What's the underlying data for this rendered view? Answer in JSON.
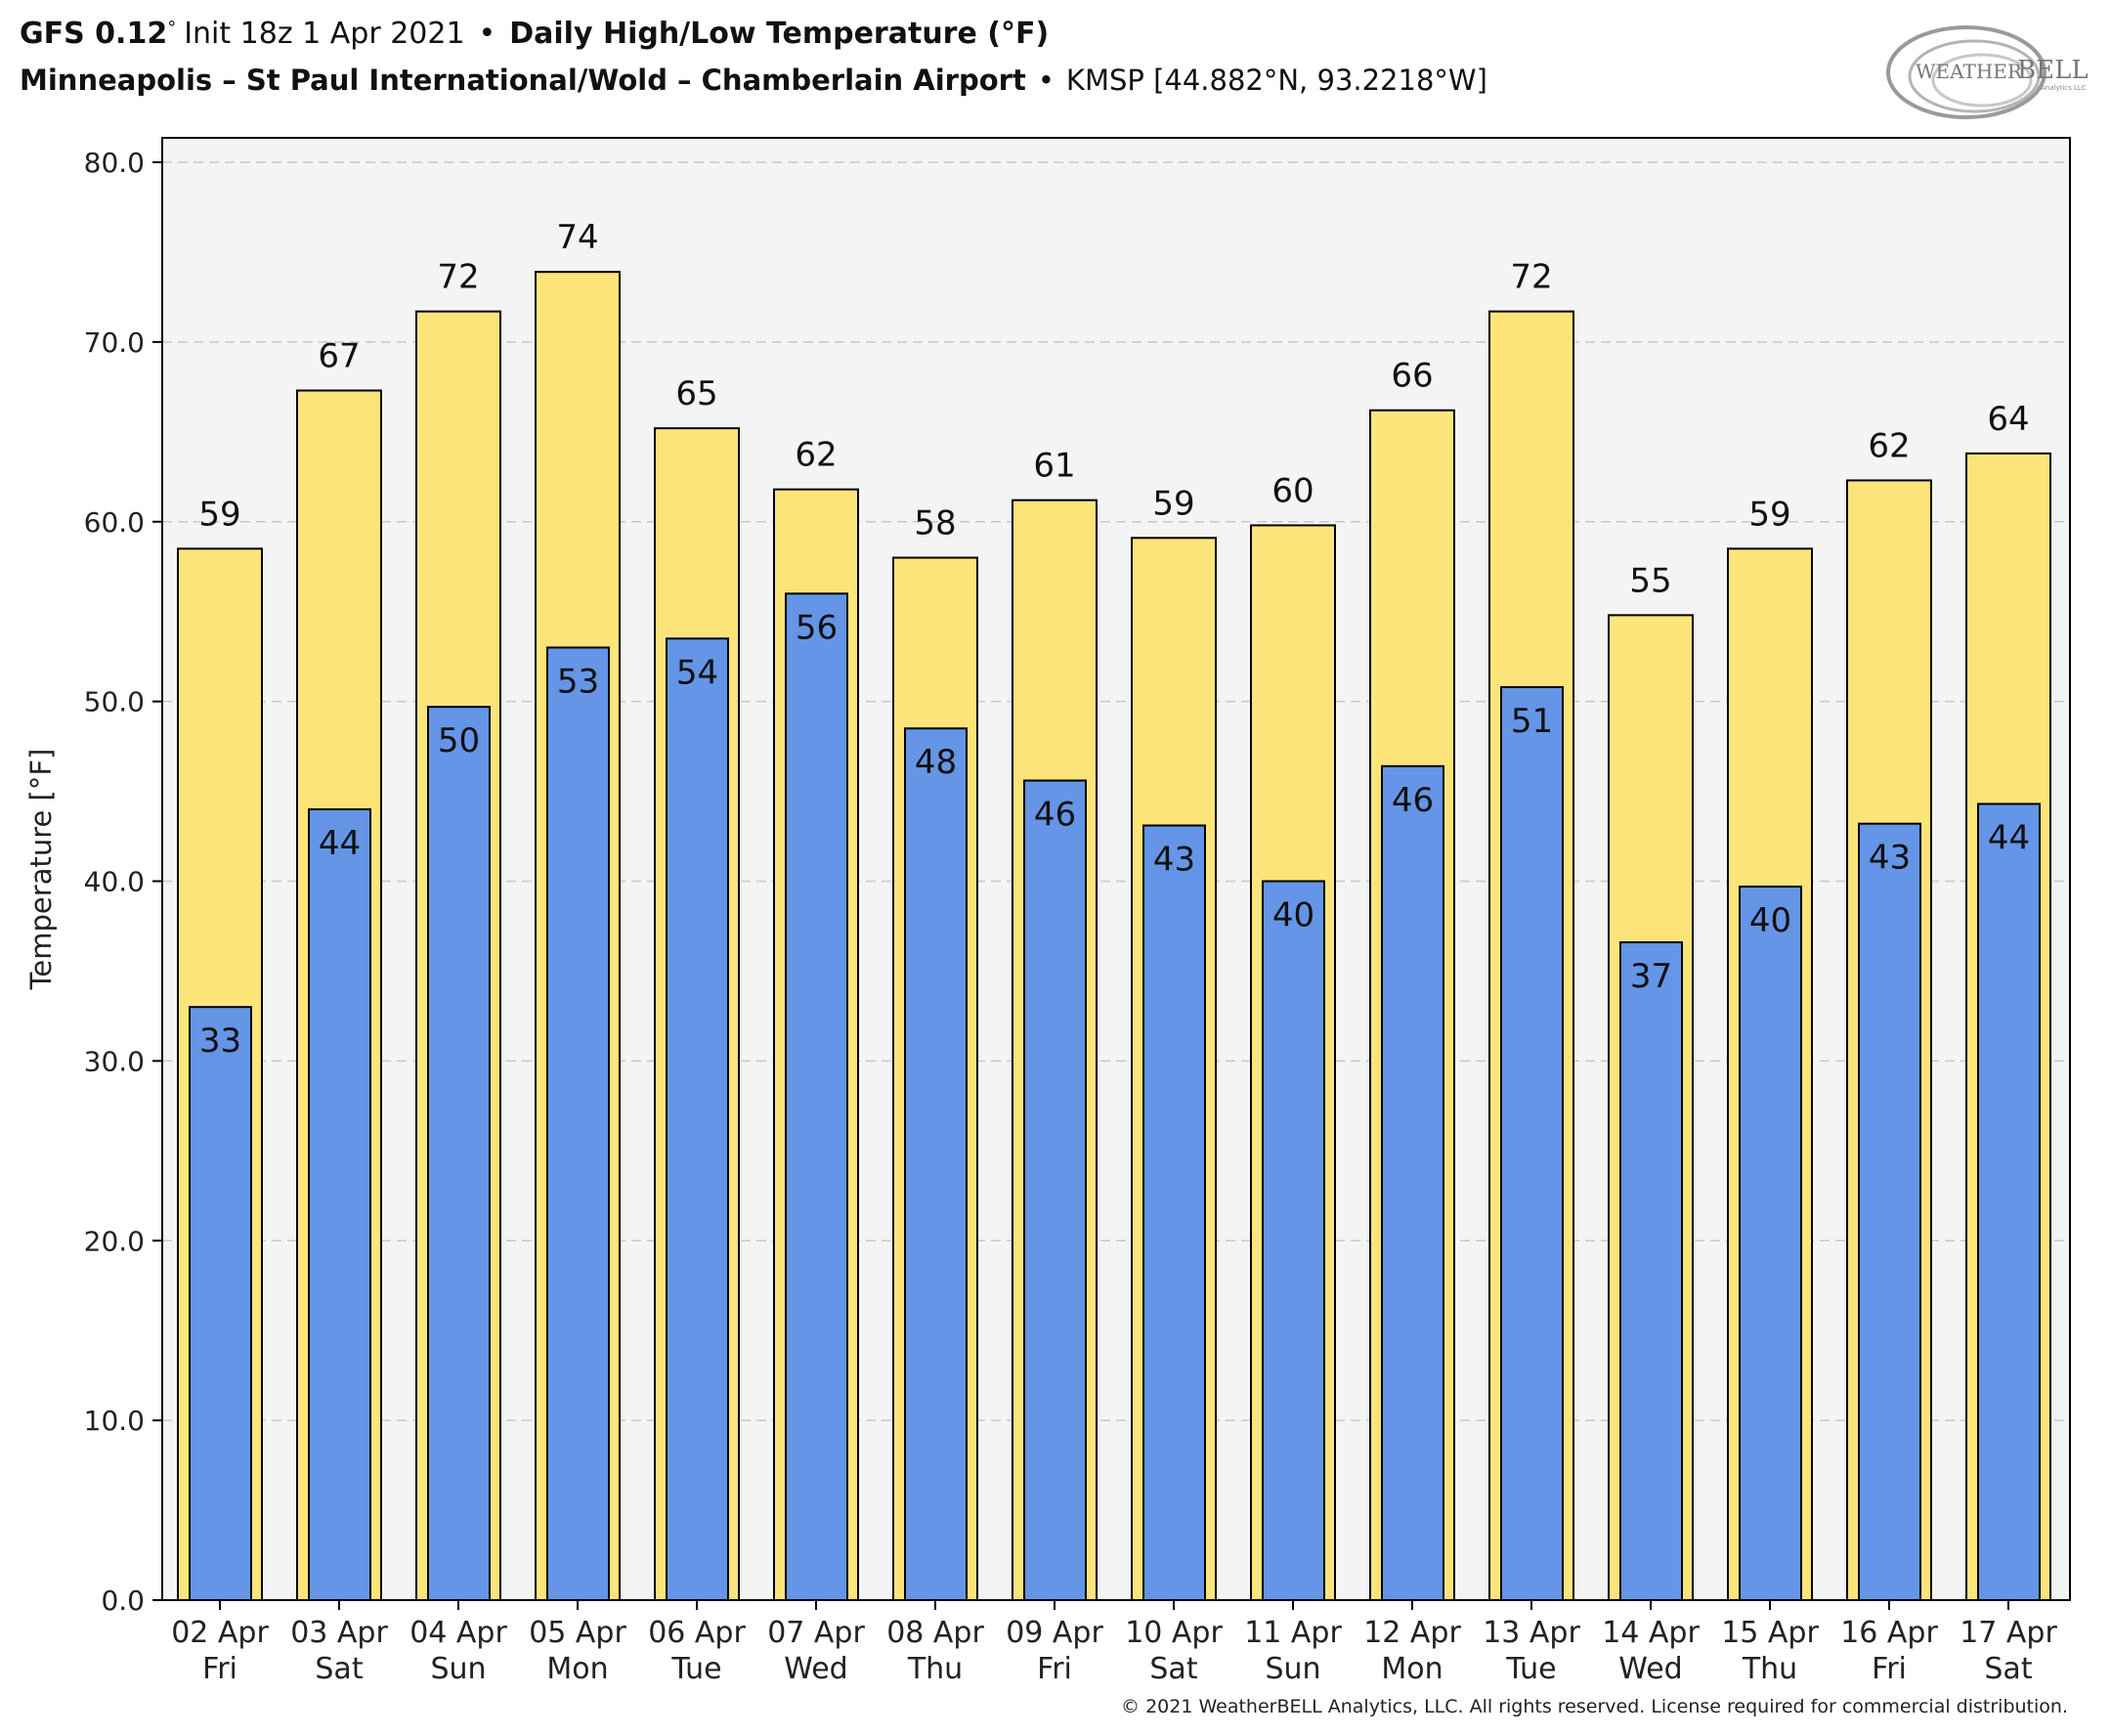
{
  "header": {
    "model": "GFS 0.12",
    "degree_mark": "°",
    "init": "Init 18z 1 Apr 2021",
    "bullet": "•",
    "product": "Daily High/Low Temperature (°F)",
    "station_name": "Minneapolis – St Paul International/Wold – Chamberlain Airport",
    "station_id": "KMSP [44.882°N, 93.2218°W]"
  },
  "logo": {
    "text_left": "WEATHER",
    "text_right": "BELL",
    "subtext": "Analytics LLC"
  },
  "footer": {
    "copyright": "© 2021 WeatherBELL Analytics, LLC. All rights reserved. License required for commercial distribution."
  },
  "colors": {
    "high": "#fde47a",
    "low": "#6495e6",
    "plot_bg": "#f4f4f4",
    "grid": "#c8c8c8",
    "outline": "#000000"
  },
  "chart_data": {
    "type": "bar",
    "ylabel": "Temperature [°F]",
    "ylim": [
      0,
      80
    ],
    "yticks": [
      "0.0",
      "10.0",
      "20.0",
      "30.0",
      "40.0",
      "50.0",
      "60.0",
      "70.0",
      "80.0"
    ],
    "grid": true,
    "categories": [
      {
        "date": "02 Apr",
        "day": "Fri"
      },
      {
        "date": "03 Apr",
        "day": "Sat"
      },
      {
        "date": "04 Apr",
        "day": "Sun"
      },
      {
        "date": "05 Apr",
        "day": "Mon"
      },
      {
        "date": "06 Apr",
        "day": "Tue"
      },
      {
        "date": "07 Apr",
        "day": "Wed"
      },
      {
        "date": "08 Apr",
        "day": "Thu"
      },
      {
        "date": "09 Apr",
        "day": "Fri"
      },
      {
        "date": "10 Apr",
        "day": "Sat"
      },
      {
        "date": "11 Apr",
        "day": "Sun"
      },
      {
        "date": "12 Apr",
        "day": "Mon"
      },
      {
        "date": "13 Apr",
        "day": "Tue"
      },
      {
        "date": "14 Apr",
        "day": "Wed"
      },
      {
        "date": "15 Apr",
        "day": "Thu"
      },
      {
        "date": "16 Apr",
        "day": "Fri"
      },
      {
        "date": "17 Apr",
        "day": "Sat"
      }
    ],
    "series": [
      {
        "key": "high",
        "values": [
          58.5,
          67.3,
          71.7,
          73.9,
          65.2,
          61.8,
          58.0,
          61.2,
          59.1,
          59.8,
          66.2,
          71.7,
          54.8,
          58.5,
          62.3,
          63.8
        ],
        "labels": [
          "59",
          "67",
          "72",
          "74",
          "65",
          "62",
          "58",
          "61",
          "59",
          "60",
          "66",
          "72",
          "55",
          "59",
          "62",
          "64"
        ]
      },
      {
        "key": "low",
        "values": [
          33.0,
          44.0,
          49.7,
          53.0,
          53.5,
          56.0,
          48.5,
          45.6,
          43.1,
          40.0,
          46.4,
          50.8,
          36.6,
          39.7,
          43.2,
          44.3
        ],
        "labels": [
          "33",
          "44",
          "50",
          "53",
          "54",
          "56",
          "48",
          "46",
          "43",
          "40",
          "46",
          "51",
          "37",
          "40",
          "43",
          "44"
        ]
      }
    ]
  }
}
